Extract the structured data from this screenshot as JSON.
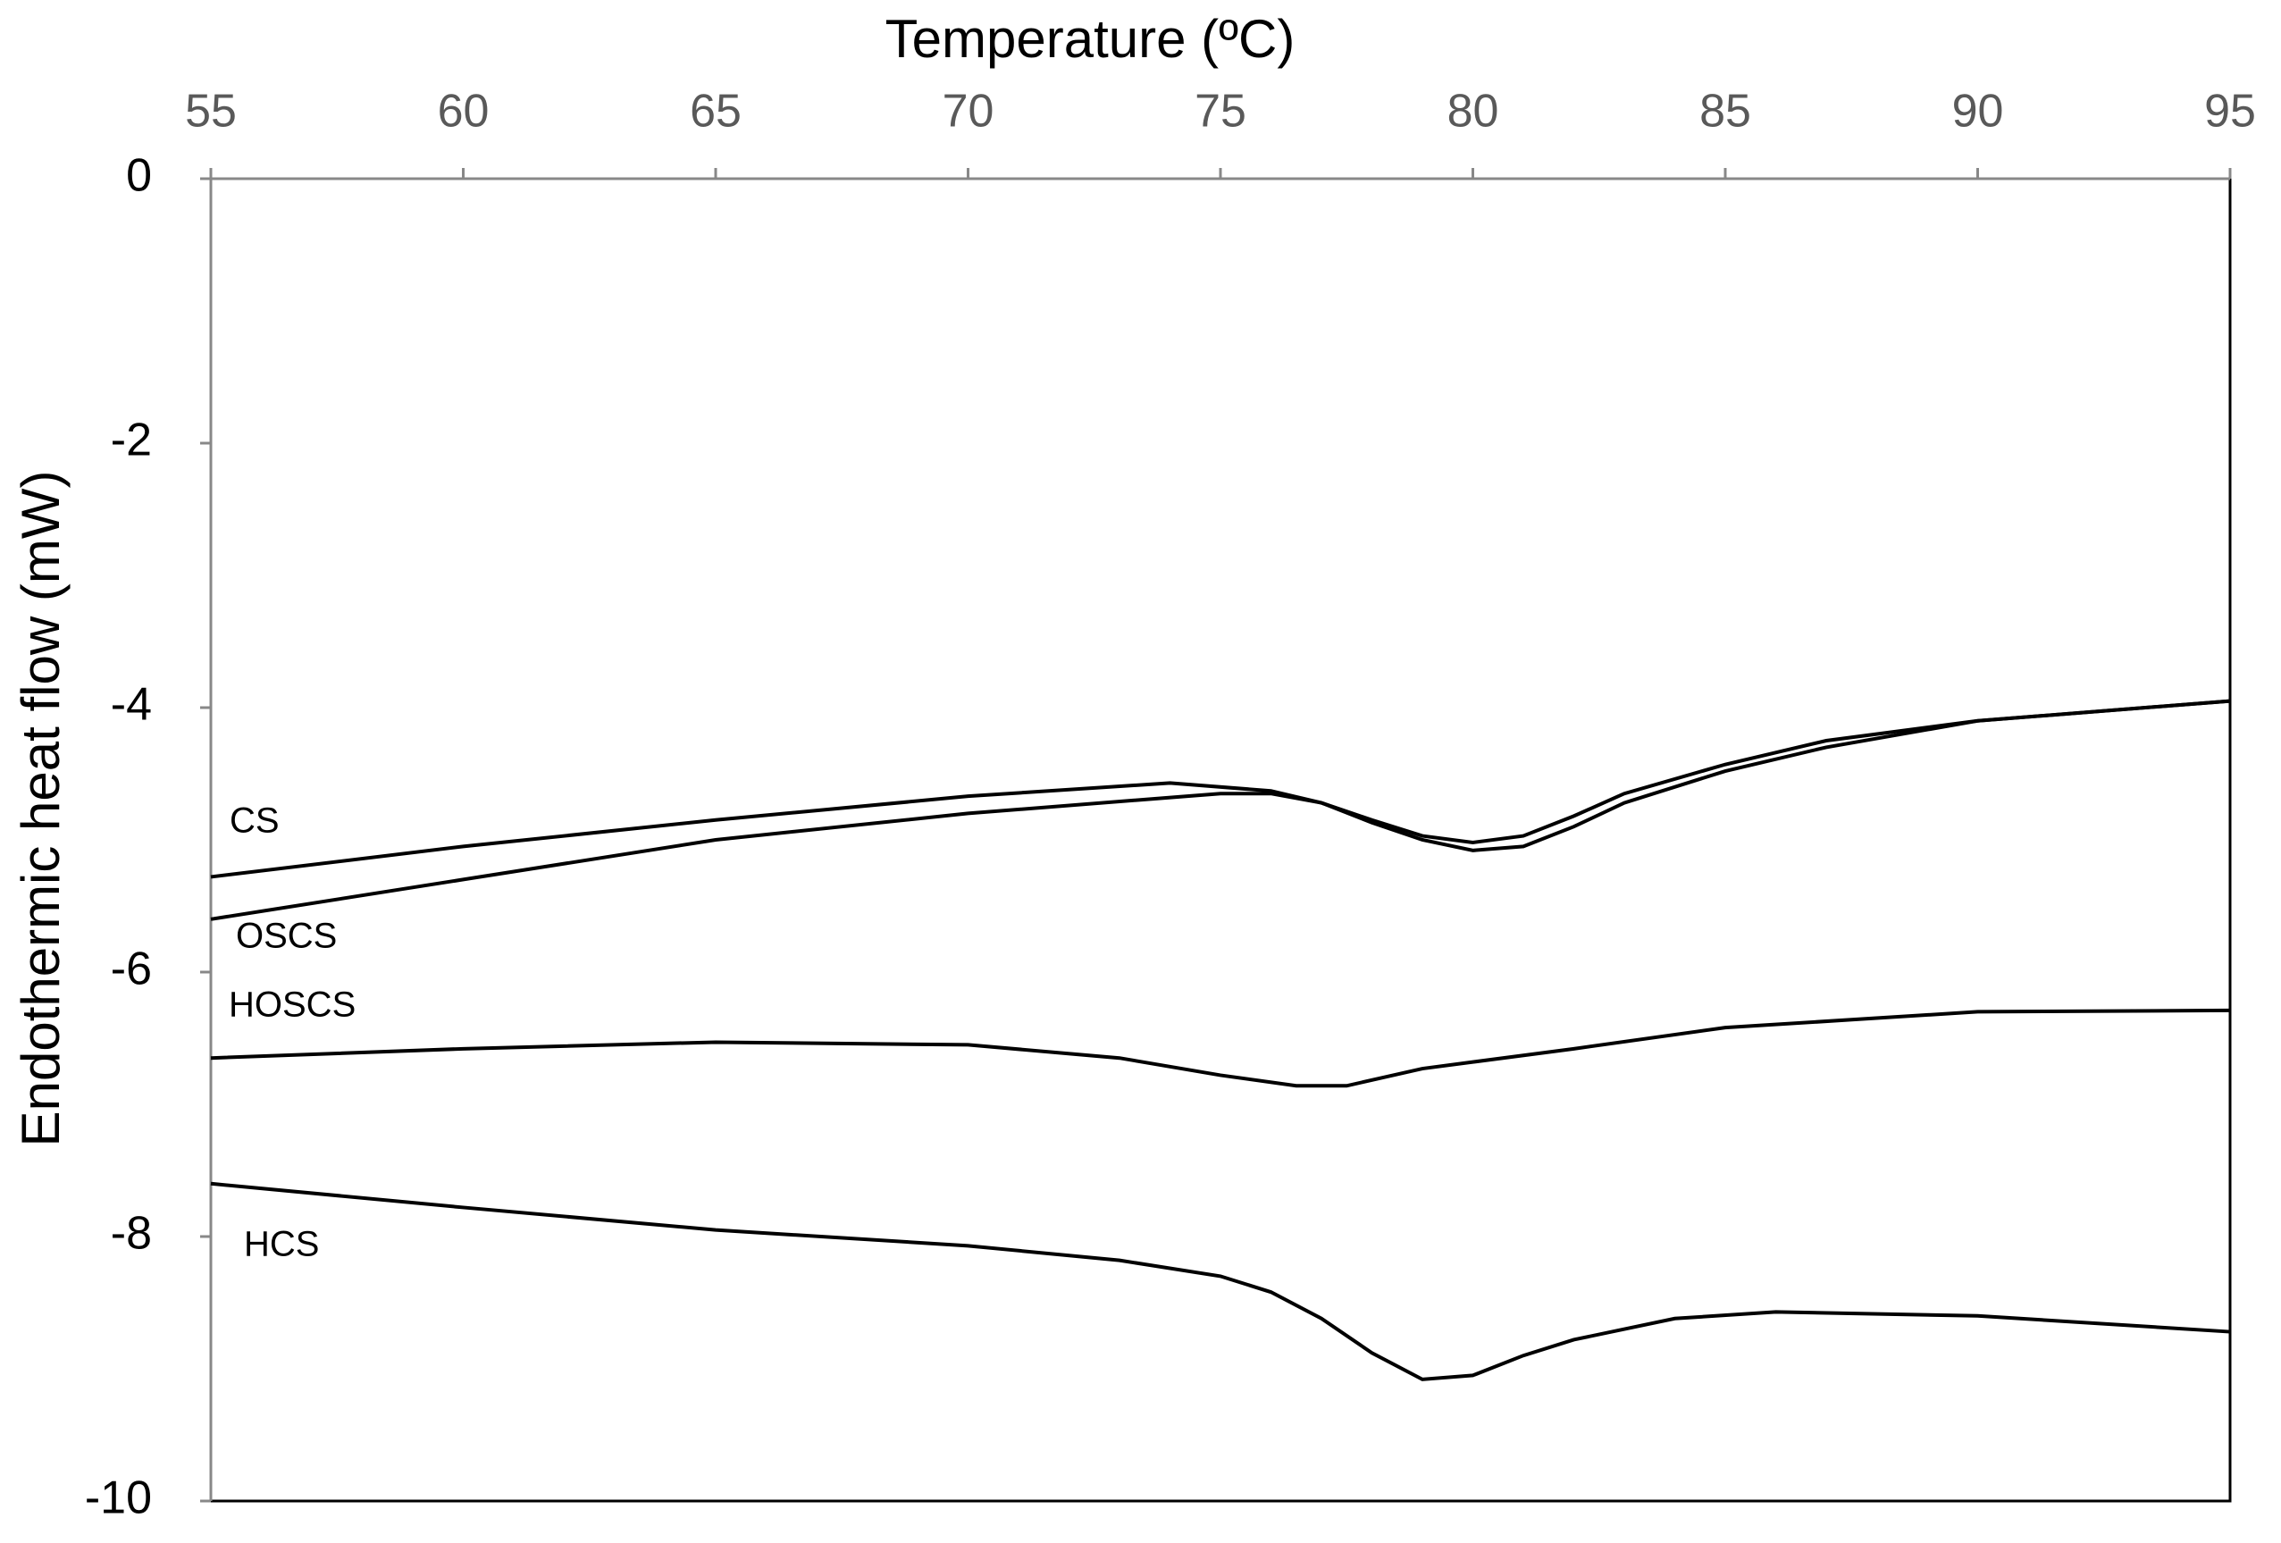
{
  "chart_data": {
    "type": "line",
    "x_label": "Temperature (ºC)",
    "y_label": "Endothermic heat flow (mW)",
    "xlim": [
      55,
      95
    ],
    "xticks": [
      55,
      60,
      65,
      70,
      75,
      80,
      85,
      90,
      95
    ],
    "ylim": [
      -10,
      0
    ],
    "yticks": [
      0,
      -2,
      -4,
      -6,
      -8,
      -10
    ],
    "series": [
      {
        "name": "CS",
        "color": "#000000",
        "x": [
          55,
          60,
          65,
          70,
          74,
          76,
          77,
          78,
          79,
          80,
          81,
          82,
          83,
          85,
          87,
          90,
          95
        ],
        "values": [
          -5.28,
          -5.05,
          -4.85,
          -4.67,
          -4.57,
          -4.63,
          -4.72,
          -4.85,
          -4.97,
          -5.02,
          -4.97,
          -4.82,
          -4.65,
          -4.43,
          -4.25,
          -4.1,
          -3.95
        ]
      },
      {
        "name": "OSCS",
        "color": "#000000",
        "x": [
          55,
          60,
          65,
          70,
          75,
          76,
          77,
          78,
          79,
          80,
          81,
          82,
          83,
          85,
          87,
          90,
          95
        ],
        "values": [
          -5.6,
          -5.3,
          -5.0,
          -4.8,
          -4.65,
          -4.65,
          -4.72,
          -4.87,
          -5.0,
          -5.08,
          -5.05,
          -4.9,
          -4.72,
          -4.48,
          -4.3,
          -4.1,
          -3.95
        ]
      },
      {
        "name": "HOSCS",
        "color": "#000000",
        "x": [
          55,
          60,
          65,
          70,
          73,
          75,
          76.5,
          77.5,
          79,
          80,
          82,
          85,
          90,
          95
        ],
        "values": [
          -6.65,
          -6.58,
          -6.53,
          -6.55,
          -6.65,
          -6.78,
          -6.86,
          -6.86,
          -6.73,
          -6.68,
          -6.58,
          -6.42,
          -6.3,
          -6.29
        ]
      },
      {
        "name": "HCS",
        "color": "#000000",
        "x": [
          55,
          60,
          65,
          70,
          73,
          75,
          76,
          77,
          78,
          79,
          80,
          81,
          82,
          84,
          86,
          90,
          95
        ],
        "values": [
          -7.6,
          -7.78,
          -7.95,
          -8.07,
          -8.18,
          -8.3,
          -8.42,
          -8.62,
          -8.88,
          -9.08,
          -9.05,
          -8.9,
          -8.78,
          -8.62,
          -8.57,
          -8.6,
          -8.72
        ]
      }
    ]
  }
}
